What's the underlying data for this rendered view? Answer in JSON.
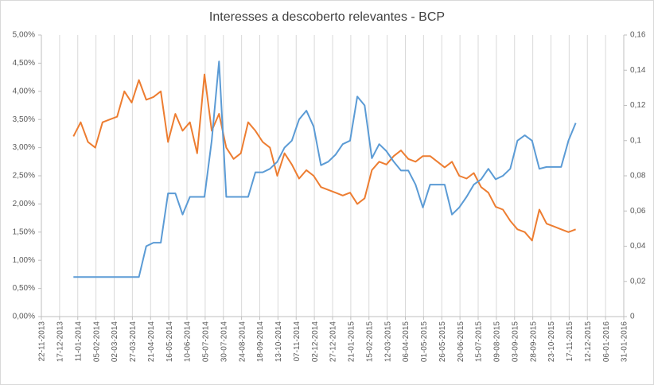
{
  "chart_data": {
    "type": "line",
    "title": "Interesses a descoberto relevantes - BCP",
    "x": [
      "05-01-2014",
      "15-01-2014",
      "25-01-2014",
      "04-02-2014",
      "14-02-2014",
      "24-02-2014",
      "06-03-2014",
      "16-03-2014",
      "26-03-2014",
      "05-04-2014",
      "15-04-2014",
      "25-04-2014",
      "05-05-2014",
      "15-05-2014",
      "25-05-2014",
      "04-06-2014",
      "14-06-2014",
      "24-06-2014",
      "04-07-2014",
      "14-07-2014",
      "24-07-2014",
      "03-08-2014",
      "13-08-2014",
      "23-08-2014",
      "02-09-2014",
      "12-09-2014",
      "22-09-2014",
      "02-10-2014",
      "12-10-2014",
      "22-10-2014",
      "01-11-2014",
      "11-11-2014",
      "21-11-2014",
      "01-12-2014",
      "11-12-2014",
      "21-12-2014",
      "31-12-2014",
      "10-01-2015",
      "20-01-2015",
      "30-01-2015",
      "09-02-2015",
      "19-02-2015",
      "01-03-2015",
      "11-03-2015",
      "21-03-2015",
      "31-03-2015",
      "10-04-2015",
      "20-04-2015",
      "30-04-2015",
      "10-05-2015",
      "20-05-2015",
      "30-05-2015",
      "09-06-2015",
      "19-06-2015",
      "29-06-2015",
      "09-07-2015",
      "19-07-2015",
      "29-07-2015",
      "08-08-2015",
      "18-08-2015",
      "28-08-2015",
      "07-09-2015",
      "17-09-2015",
      "27-09-2015",
      "07-10-2015",
      "17-10-2015",
      "27-10-2015",
      "06-11-2015",
      "16-11-2015",
      "26-11-2015"
    ],
    "series": [
      {
        "color": "#ed7d31",
        "axis": "y",
        "values": [
          3.2,
          3.45,
          3.1,
          3.0,
          3.45,
          3.5,
          3.55,
          4.0,
          3.8,
          4.2,
          3.85,
          3.9,
          4.0,
          3.1,
          3.6,
          3.3,
          3.45,
          2.9,
          4.3,
          3.3,
          3.6,
          3.0,
          2.8,
          2.9,
          3.45,
          3.3,
          3.1,
          3.0,
          2.5,
          2.9,
          2.7,
          2.45,
          2.6,
          2.5,
          2.3,
          2.25,
          2.2,
          2.15,
          2.2,
          2.0,
          2.1,
          2.6,
          2.75,
          2.7,
          2.85,
          2.95,
          2.8,
          2.75,
          2.85,
          2.85,
          2.75,
          2.65,
          2.75,
          2.5,
          2.45,
          2.55,
          2.3,
          2.2,
          1.95,
          1.9,
          1.7,
          1.55,
          1.5,
          1.35,
          1.9,
          1.65,
          1.6,
          1.55,
          1.5,
          1.55
        ]
      },
      {
        "color": "#5b9bd5",
        "axis": "y2",
        "values": [
          0.0225,
          0.0225,
          0.0225,
          0.0225,
          0.0225,
          0.0225,
          0.0225,
          0.0225,
          0.0225,
          0.0225,
          0.04,
          0.042,
          0.042,
          0.07,
          0.07,
          0.058,
          0.068,
          0.068,
          0.068,
          0.1,
          0.145,
          0.068,
          0.068,
          0.068,
          0.068,
          0.082,
          0.082,
          0.084,
          0.088,
          0.096,
          0.1,
          0.112,
          0.117,
          0.108,
          0.086,
          0.088,
          0.092,
          0.098,
          0.1,
          0.125,
          0.12,
          0.09,
          0.098,
          0.094,
          0.088,
          0.083,
          0.083,
          0.075,
          0.062,
          0.075,
          0.075,
          0.075,
          0.058,
          0.062,
          0.068,
          0.075,
          0.078,
          0.084,
          0.078,
          0.08,
          0.084,
          0.1,
          0.103,
          0.1,
          0.084,
          0.085,
          0.085,
          0.085,
          0.1,
          0.11
        ]
      }
    ],
    "xlim": [
      "22-11-2013",
      "31-01-2016"
    ],
    "xticks": [
      "22-11-2013",
      "17-12-2013",
      "11-01-2014",
      "05-02-2014",
      "02-03-2014",
      "27-03-2014",
      "21-04-2014",
      "16-05-2014",
      "10-06-2014",
      "05-07-2014",
      "30-07-2014",
      "24-08-2014",
      "18-09-2014",
      "13-10-2014",
      "07-11-2014",
      "02-12-2014",
      "27-12-2014",
      "21-01-2015",
      "15-02-2015",
      "12-03-2015",
      "06-04-2015",
      "01-05-2015",
      "26-05-2015",
      "20-06-2015",
      "15-07-2015",
      "09-08-2015",
      "03-09-2015",
      "28-09-2015",
      "23-10-2015",
      "17-11-2015",
      "12-12-2015",
      "06-01-2016",
      "31-01-2016"
    ],
    "ylim": [
      0,
      5
    ],
    "yticks": [
      {
        "value": 0,
        "label": "0,00%"
      },
      {
        "value": 0.5,
        "label": "0,50%"
      },
      {
        "value": 1,
        "label": "1,00%"
      },
      {
        "value": 1.5,
        "label": "1,50%"
      },
      {
        "value": 2,
        "label": "2,00%"
      },
      {
        "value": 2.5,
        "label": "2,50%"
      },
      {
        "value": 3,
        "label": "3,00%"
      },
      {
        "value": 3.5,
        "label": "3,50%"
      },
      {
        "value": 4,
        "label": "4,00%"
      },
      {
        "value": 4.5,
        "label": "4,50%"
      },
      {
        "value": 5,
        "label": "5,00%"
      }
    ],
    "y2lim": [
      0,
      0.16
    ],
    "y2ticks": [
      0,
      {
        "value": 0.02,
        "label": "0,02"
      },
      {
        "value": 0.04,
        "label": "0,04"
      },
      {
        "value": 0.06,
        "label": "0,06"
      },
      {
        "value": 0.08,
        "label": "0,08"
      },
      {
        "value": 0.1,
        "label": "0,1"
      },
      {
        "value": 0.12,
        "label": "0,12"
      },
      {
        "value": 0.14,
        "label": "0,14"
      },
      {
        "value": 0.16,
        "label": "0,16"
      }
    ],
    "xgrid": true
  }
}
